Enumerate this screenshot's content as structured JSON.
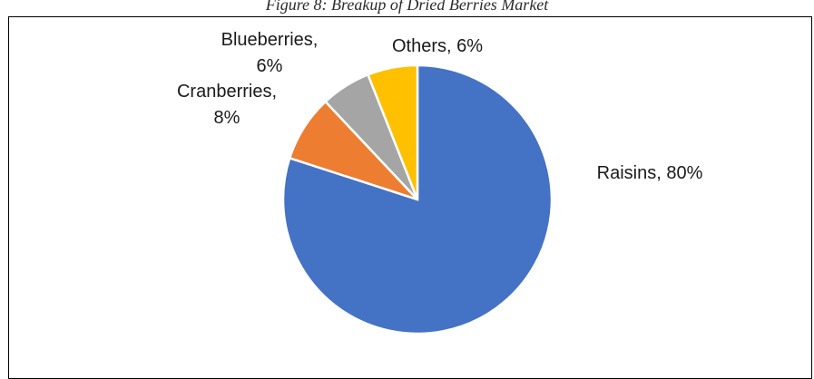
{
  "caption": "Figure 8: Breakup of Dried Berries Market",
  "chart_data": {
    "type": "pie",
    "categories": [
      "Raisins",
      "Cranberries",
      "Blueberries",
      "Others"
    ],
    "values": [
      80,
      8,
      6,
      6
    ],
    "unit": "%",
    "colors": [
      "#4472C4",
      "#ED7D31",
      "#A5A5A5",
      "#FFC000"
    ],
    "start": "12 o'clock",
    "direction": "clockwise",
    "data_labels": [
      [
        "Raisins, 80%"
      ],
      [
        "Cranberries,",
        "8%"
      ],
      [
        "Blueberries,",
        "6%"
      ],
      [
        "Others, 6%"
      ]
    ]
  }
}
